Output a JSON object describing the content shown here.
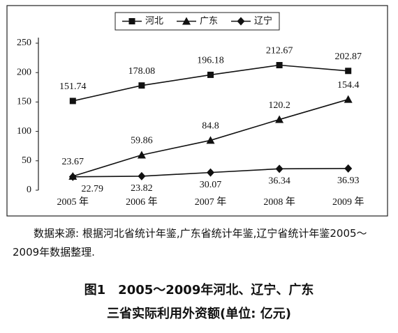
{
  "chart_data": {
    "type": "line",
    "categories": [
      "2005 年",
      "2006 年",
      "2007 年",
      "2008 年",
      "2009 年"
    ],
    "series": [
      {
        "name": "河北",
        "color": "#111111",
        "marker": "square",
        "values": [
          151.74,
          178.08,
          196.18,
          212.67,
          202.87
        ]
      },
      {
        "name": "广东",
        "color": "#111111",
        "marker": "triangle",
        "values": [
          23.67,
          59.86,
          84.8,
          120.2,
          154.4
        ]
      },
      {
        "name": "辽宁",
        "color": "#111111",
        "marker": "diamond",
        "values": [
          22.79,
          23.82,
          30.07,
          36.34,
          36.93
        ]
      }
    ],
    "ylim": [
      0,
      250
    ],
    "yticks": [
      0,
      50,
      100,
      150,
      200,
      250
    ],
    "grid": false,
    "legend": "top",
    "source_note": "数据来源: 根据河北省统计年鉴,广东省统计年鉴,辽宁省统计年鉴2005～2009年数据整理.",
    "caption": [
      "图1　2005～2009年河北、辽宁、广东",
      "三省实际利用外资额(单位: 亿元)"
    ]
  }
}
